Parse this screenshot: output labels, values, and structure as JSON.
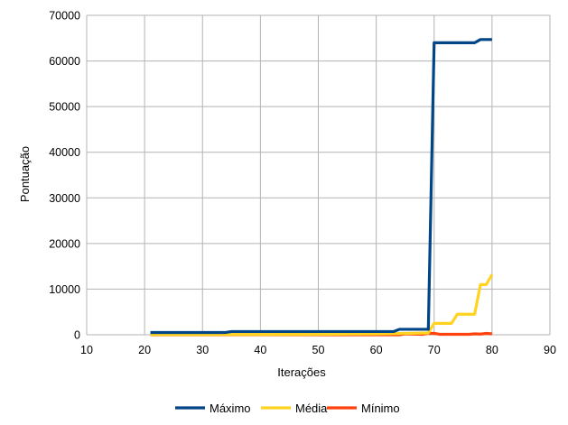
{
  "chart_data": {
    "type": "line",
    "xlabel": "Iterações",
    "ylabel": "Pontuação",
    "xlim": [
      10,
      90
    ],
    "ylim": [
      0,
      70000
    ],
    "x_ticks": [
      10,
      20,
      30,
      40,
      50,
      60,
      70,
      80,
      90
    ],
    "y_ticks": [
      0,
      10000,
      20000,
      30000,
      40000,
      50000,
      60000,
      70000
    ],
    "grid": true,
    "legend_position": "bottom-center",
    "series": [
      {
        "name": "Máximo",
        "color": "#004586",
        "points": [
          [
            21,
            500
          ],
          [
            34,
            500
          ],
          [
            35,
            700
          ],
          [
            63,
            700
          ],
          [
            64,
            1200
          ],
          [
            69,
            1200
          ],
          [
            70,
            64000
          ],
          [
            77,
            64000
          ],
          [
            78,
            64700
          ],
          [
            80,
            64700
          ]
        ]
      },
      {
        "name": "Média",
        "color": "#ffd320",
        "points": [
          [
            21,
            50
          ],
          [
            40,
            50
          ],
          [
            50,
            100
          ],
          [
            60,
            200
          ],
          [
            65,
            300
          ],
          [
            69,
            400
          ],
          [
            70,
            2500
          ],
          [
            73,
            2500
          ],
          [
            74,
            4500
          ],
          [
            77,
            4500
          ],
          [
            78,
            11000
          ],
          [
            79,
            11000
          ],
          [
            80,
            13200
          ]
        ]
      },
      {
        "name": "Mínimo",
        "color": "#ff420e",
        "points": [
          [
            21,
            0
          ],
          [
            64,
            0
          ],
          [
            65,
            200
          ],
          [
            68,
            100
          ],
          [
            69,
            300
          ],
          [
            70,
            300
          ],
          [
            71,
            100
          ],
          [
            76,
            100
          ],
          [
            77,
            200
          ],
          [
            78,
            150
          ],
          [
            79,
            300
          ],
          [
            80,
            200
          ]
        ]
      }
    ]
  }
}
